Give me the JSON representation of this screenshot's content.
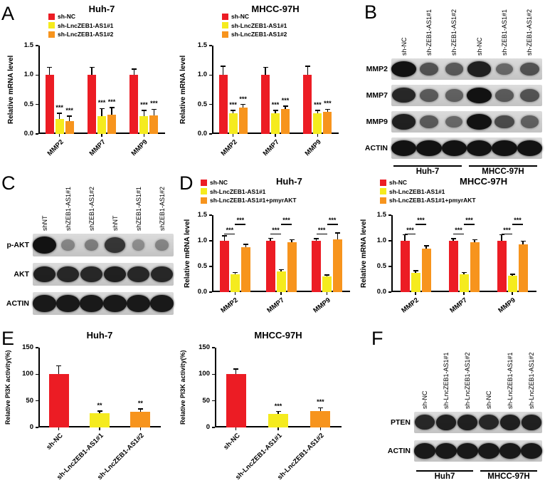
{
  "panels": {
    "a": "A",
    "b": "B",
    "c": "C",
    "d": "D",
    "e": "E",
    "f": "F"
  },
  "colors": {
    "red": "#ec1c24",
    "yellow": "#f5eb1e",
    "orange": "#f7941d"
  },
  "chart_data": {
    "a1": {
      "type": "bar",
      "title": "Huh-7",
      "ylabel": "Relative mRNA level",
      "ylim": [
        0,
        1.5
      ],
      "yticks": [
        "0.0",
        "0.5",
        "1.0",
        "1.5"
      ],
      "categories": [
        "MMP2",
        "MMP7",
        "MMP9"
      ],
      "legend_position": "top-left",
      "series": [
        {
          "name": "sh-NC",
          "color": "#ec1c24",
          "values": [
            1.0,
            1.0,
            1.0
          ],
          "errors": [
            0.13,
            0.13,
            0.1
          ],
          "sig": [
            "",
            "",
            ""
          ]
        },
        {
          "name": "sh-LncZEB1-AS1#1",
          "color": "#f5eb1e",
          "values": [
            0.25,
            0.3,
            0.3
          ],
          "errors": [
            0.1,
            0.13,
            0.1
          ],
          "sig": [
            "***",
            "***",
            "***"
          ]
        },
        {
          "name": "sh-LncZEB1-AS1#2",
          "color": "#f7941d",
          "values": [
            0.22,
            0.33,
            0.32
          ],
          "errors": [
            0.08,
            0.12,
            0.1
          ],
          "sig": [
            "***",
            "***",
            "***"
          ]
        }
      ]
    },
    "a2": {
      "type": "bar",
      "title": "MHCC-97H",
      "ylabel": "Relative mRNA level",
      "ylim": [
        0,
        1.5
      ],
      "yticks": [
        "0.0",
        "0.5",
        "1.0",
        "1.5"
      ],
      "categories": [
        "MMP2",
        "MMP7",
        "MMP9"
      ],
      "legend_position": "top-left",
      "series": [
        {
          "name": "sh-NC",
          "color": "#ec1c24",
          "values": [
            1.0,
            1.0,
            1.0
          ],
          "errors": [
            0.15,
            0.13,
            0.15
          ],
          "sig": [
            "",
            "",
            ""
          ]
        },
        {
          "name": "sh-LncZEB1-AS1#1",
          "color": "#f5eb1e",
          "values": [
            0.35,
            0.35,
            0.35
          ],
          "errors": [
            0.05,
            0.05,
            0.05
          ],
          "sig": [
            "***",
            "***",
            "***"
          ]
        },
        {
          "name": "sh-LncZEB1-AS1#2",
          "color": "#f7941d",
          "values": [
            0.45,
            0.42,
            0.38
          ],
          "errors": [
            0.05,
            0.05,
            0.04
          ],
          "sig": [
            "***",
            "***",
            "***"
          ]
        }
      ]
    },
    "d1": {
      "type": "bar",
      "title": "Huh-7",
      "ylabel": "Relative mRNA level",
      "ylim": [
        0,
        1.5
      ],
      "yticks": [
        "0.0",
        "0.5",
        "1.0",
        "1.5"
      ],
      "categories": [
        "MMP2",
        "MMP7",
        "MMP9"
      ],
      "legend_position": "top-left",
      "series": [
        {
          "name": "sh-NC",
          "color": "#ec1c24",
          "values": [
            1.0,
            1.0,
            1.0
          ],
          "errors": [
            0.1,
            0.05,
            0.04
          ],
          "sig": [
            "",
            "",
            ""
          ]
        },
        {
          "name": "sh-LncZEB1-AS1#1",
          "color": "#f5eb1e",
          "values": [
            0.35,
            0.4,
            0.3
          ],
          "errors": [
            0.03,
            0.04,
            0.03
          ],
          "sig": [
            "",
            "",
            ""
          ]
        },
        {
          "name": "sh-LncZEB1-AS1#1+pmyrAKT",
          "color": "#f7941d",
          "values": [
            0.87,
            0.97,
            1.03
          ],
          "errors": [
            0.06,
            0.05,
            0.12
          ],
          "sig": [
            "",
            "",
            ""
          ]
        }
      ],
      "brackets": {
        "levels": [
          1.14,
          1.33
        ],
        "labels": [
          "***",
          "***"
        ]
      }
    },
    "d2": {
      "type": "bar",
      "title": "MHCC-97H",
      "ylabel": "Relative mRNA level",
      "ylim": [
        0,
        1.5
      ],
      "yticks": [
        "0.0",
        "0.5",
        "1.0",
        "1.5"
      ],
      "categories": [
        "MMP2",
        "MMP7",
        "MMP9"
      ],
      "legend_position": "top-left",
      "series": [
        {
          "name": "sh-NC",
          "color": "#ec1c24",
          "values": [
            1.0,
            1.0,
            1.0
          ],
          "errors": [
            0.12,
            0.04,
            0.12
          ],
          "sig": [
            "",
            "",
            ""
          ]
        },
        {
          "name": "sh-LncZEB1-AS1#1",
          "color": "#f5eb1e",
          "values": [
            0.38,
            0.35,
            0.32
          ],
          "errors": [
            0.04,
            0.03,
            0.03
          ],
          "sig": [
            "",
            "",
            ""
          ]
        },
        {
          "name": "sh-LncZEB1-AS1#1+pmyrAKT",
          "color": "#f7941d",
          "values": [
            0.85,
            0.97,
            0.93
          ],
          "errors": [
            0.05,
            0.05,
            0.06
          ],
          "sig": [
            "",
            "",
            ""
          ]
        }
      ],
      "brackets": {
        "levels": [
          1.14,
          1.33
        ],
        "labels": [
          "***",
          "***"
        ]
      }
    },
    "e1": {
      "type": "bar",
      "title": "Huh-7",
      "ylabel": "Relative PI3K activity(%)",
      "ylim": [
        0,
        150
      ],
      "yticks": [
        "0",
        "50",
        "100",
        "150"
      ],
      "categories": [
        "sh-NC",
        "sh-LncZEB1-AS1#1",
        "sh-LncZEB1-AS1#2"
      ],
      "bars": {
        "values": [
          100,
          27,
          30
        ],
        "errors": [
          16,
          4,
          5
        ],
        "colors": [
          "#ec1c24",
          "#f5eb1e",
          "#f7941d"
        ],
        "sig": [
          "",
          "**",
          "**"
        ]
      }
    },
    "e2": {
      "type": "bar",
      "title": "MHCC-97H",
      "ylabel": "Relative PI3K activity(%)",
      "ylim": [
        0,
        150
      ],
      "yticks": [
        "0",
        "50",
        "100",
        "150"
      ],
      "categories": [
        "sh-NC",
        "sh-LncZEB1-AS1#1",
        "sh-LncZEB1-AS1#2"
      ],
      "bars": {
        "values": [
          100,
          26,
          31
        ],
        "errors": [
          10,
          4,
          6
        ],
        "colors": [
          "#ec1c24",
          "#f5eb1e",
          "#f7941d"
        ],
        "sig": [
          "",
          "***",
          "***"
        ]
      }
    }
  },
  "blots": {
    "b": {
      "lane_labels": [
        "sh-NC",
        "sh-ZEB1-AS1#1",
        "sh-ZEB1-AS1#2",
        "sh-NC",
        "sh-ZEB1-AS1#1",
        "sh-ZEB1-AS1#2"
      ],
      "rows": [
        {
          "label": "MMP2",
          "bands": [
            1.0,
            0.55,
            0.5,
            0.9,
            0.4,
            0.55
          ]
        },
        {
          "label": "MMP7",
          "bands": [
            0.85,
            0.5,
            0.45,
            1.0,
            0.5,
            0.55
          ]
        },
        {
          "label": "MMP9",
          "bands": [
            0.9,
            0.5,
            0.4,
            1.0,
            0.6,
            0.45
          ]
        },
        {
          "label": "ACTIN",
          "bands": [
            1,
            1,
            1,
            1,
            1,
            1
          ]
        }
      ],
      "groups": [
        "Huh-7",
        "MHCC-97H"
      ]
    },
    "c": {
      "lane_labels": [
        "shNT",
        "shZEB1-AS1#1",
        "shZEB1-AS1#2",
        "shNT",
        "shZEB1-AS1#1",
        "shZEB1-AS1#2"
      ],
      "rows": [
        {
          "label": "p-AKT",
          "bands": [
            1.0,
            0.2,
            0.25,
            0.75,
            0.15,
            0.2
          ]
        },
        {
          "label": "AKT",
          "bands": [
            0.9,
            0.85,
            0.85,
            0.9,
            0.85,
            0.85
          ]
        },
        {
          "label": "ACTIN",
          "bands": [
            0.95,
            0.95,
            0.95,
            0.95,
            0.95,
            0.95
          ]
        }
      ]
    },
    "f": {
      "lane_labels": [
        "sh-NC",
        "sh-LncZEB1-AS1#1",
        "sh-LncZEB1-AS1#2",
        "sh-NC",
        "sh-LncZEB1-AS1#1",
        "sh-LncZEB1-AS1#2"
      ],
      "rows": [
        {
          "label": "PTEN",
          "bands": [
            0.85,
            0.9,
            0.9,
            0.85,
            0.9,
            0.9
          ]
        },
        {
          "label": "ACTIN",
          "bands": [
            0.95,
            0.95,
            0.95,
            0.95,
            0.95,
            0.95
          ]
        }
      ],
      "groups": [
        "Huh7",
        "MHCC-97H"
      ]
    }
  }
}
